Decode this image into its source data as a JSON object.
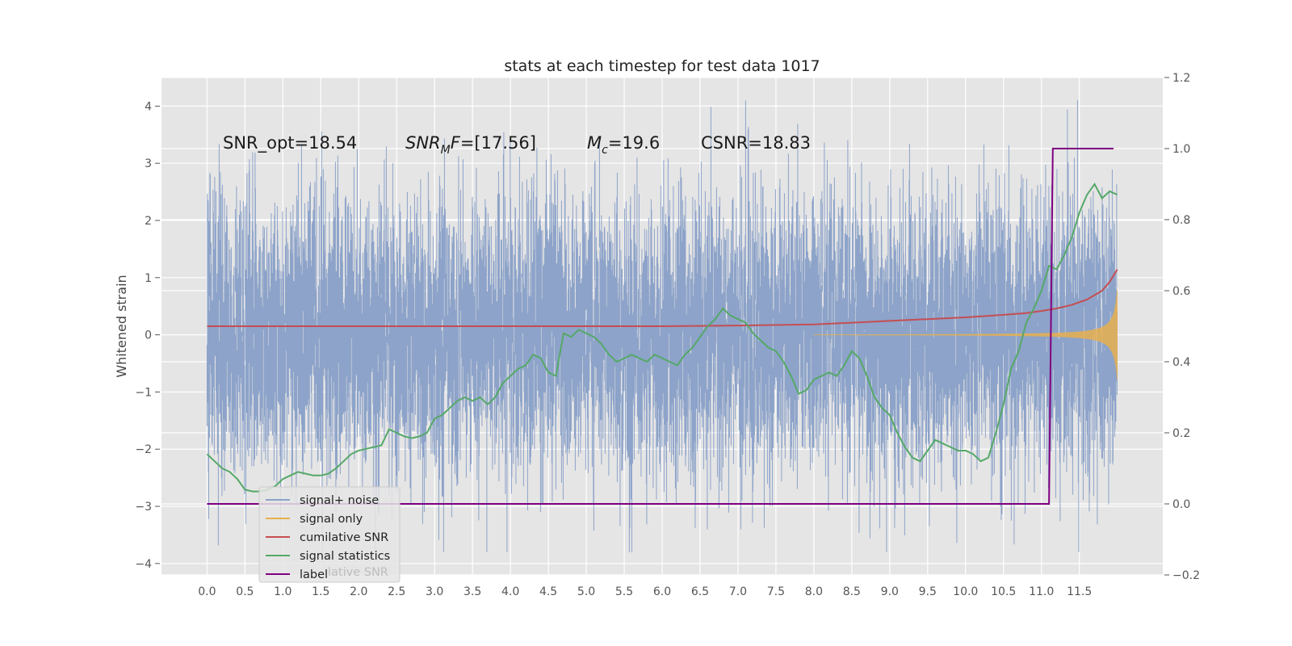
{
  "chart_data": {
    "type": "line",
    "title": "stats at each timestep for test data 1017",
    "ylabel": "Whitened strain",
    "xlabel": "",
    "xlim": [
      -0.6,
      12.6
    ],
    "ylim": [
      -4.2,
      4.5
    ],
    "y2lim": [
      -0.2,
      1.2
    ],
    "x_ticks": [
      "0.0",
      "0.5",
      "1.0",
      "1.5",
      "2.0",
      "2.5",
      "3.0",
      "3.5",
      "4.0",
      "4.5",
      "5.0",
      "5.5",
      "6.0",
      "6.5",
      "7.0",
      "7.5",
      "8.0",
      "8.5",
      "9.0",
      "9.5",
      "10.0",
      "10.5",
      "11.0",
      "11.5"
    ],
    "y_ticks": [
      "−4",
      "−3",
      "−2",
      "−1",
      "0",
      "1",
      "2",
      "3",
      "4"
    ],
    "y2_ticks": [
      "−0.2",
      "0.0",
      "0.2",
      "0.4",
      "0.6",
      "0.8",
      "1.0",
      "1.2"
    ],
    "grid": true,
    "legend_position": "lower-left",
    "annotations": {
      "snr_opt": "SNR_opt=18.54",
      "snr_mf_main": "SNR",
      "snr_mf_sub": "M",
      "snr_mf_rest": "F=[17.56]",
      "mc_main": "M",
      "mc_sub": "c",
      "mc_rest": "=19.6",
      "csnr": "CSNR=18.83"
    },
    "series": [
      {
        "name": "signal+ noise",
        "color": "#8da3c9",
        "axis": "left",
        "x_range": [
          0,
          12.0
        ],
        "amplitude_sigma": 1.0,
        "note_values": "white noise around 0, range about -3.8 to 4.1"
      },
      {
        "name": "signal only",
        "color": "#e8b04f",
        "axis": "left",
        "x_range": [
          0,
          12.0
        ]
      },
      {
        "name": "cumilative SNR",
        "color": "#c44e52",
        "axis": "right",
        "x": [
          0,
          1,
          2,
          3,
          4,
          5,
          6,
          7,
          8,
          8.5,
          9,
          9.5,
          10,
          10.5,
          10.8,
          11.0,
          11.2,
          11.4,
          11.6,
          11.8,
          11.9,
          12.0
        ],
        "values": [
          0.5,
          0.5,
          0.5,
          0.5,
          0.5,
          0.5,
          0.5,
          0.502,
          0.505,
          0.51,
          0.515,
          0.52,
          0.525,
          0.532,
          0.537,
          0.543,
          0.55,
          0.56,
          0.575,
          0.6,
          0.625,
          0.66
        ]
      },
      {
        "name": "signal statistics",
        "color": "#55a868",
        "axis": "right",
        "x": [
          0.0,
          0.1,
          0.2,
          0.3,
          0.4,
          0.5,
          0.6,
          0.7,
          0.8,
          0.9,
          1.0,
          1.1,
          1.2,
          1.3,
          1.4,
          1.5,
          1.6,
          1.7,
          1.8,
          1.9,
          2.0,
          2.1,
          2.2,
          2.3,
          2.4,
          2.5,
          2.6,
          2.7,
          2.8,
          2.9,
          3.0,
          3.1,
          3.2,
          3.3,
          3.4,
          3.5,
          3.6,
          3.7,
          3.8,
          3.9,
          4.0,
          4.1,
          4.2,
          4.3,
          4.4,
          4.5,
          4.6,
          4.7,
          4.8,
          4.9,
          5.0,
          5.1,
          5.2,
          5.3,
          5.4,
          5.5,
          5.6,
          5.7,
          5.8,
          5.9,
          6.0,
          6.1,
          6.2,
          6.3,
          6.4,
          6.5,
          6.6,
          6.7,
          6.8,
          6.9,
          7.0,
          7.1,
          7.2,
          7.3,
          7.4,
          7.5,
          7.6,
          7.7,
          7.8,
          7.9,
          8.0,
          8.1,
          8.2,
          8.3,
          8.4,
          8.5,
          8.6,
          8.7,
          8.8,
          8.9,
          9.0,
          9.1,
          9.2,
          9.3,
          9.4,
          9.5,
          9.6,
          9.7,
          9.8,
          9.9,
          10.0,
          10.1,
          10.2,
          10.3,
          10.4,
          10.5,
          10.6,
          10.7,
          10.8,
          10.9,
          11.0,
          11.1,
          11.2,
          11.3,
          11.4,
          11.5,
          11.6,
          11.7,
          11.8,
          11.9,
          12.0
        ],
        "values": [
          0.14,
          0.12,
          0.1,
          0.09,
          0.07,
          0.04,
          0.035,
          0.035,
          0.04,
          0.05,
          0.07,
          0.08,
          0.09,
          0.085,
          0.08,
          0.08,
          0.085,
          0.1,
          0.12,
          0.14,
          0.15,
          0.155,
          0.16,
          0.165,
          0.21,
          0.2,
          0.19,
          0.185,
          0.19,
          0.2,
          0.24,
          0.25,
          0.27,
          0.29,
          0.3,
          0.29,
          0.3,
          0.28,
          0.3,
          0.34,
          0.36,
          0.38,
          0.39,
          0.42,
          0.41,
          0.37,
          0.36,
          0.48,
          0.47,
          0.49,
          0.48,
          0.47,
          0.45,
          0.42,
          0.4,
          0.41,
          0.42,
          0.41,
          0.4,
          0.42,
          0.41,
          0.4,
          0.39,
          0.42,
          0.44,
          0.47,
          0.5,
          0.52,
          0.55,
          0.53,
          0.52,
          0.51,
          0.48,
          0.46,
          0.44,
          0.43,
          0.4,
          0.36,
          0.31,
          0.32,
          0.35,
          0.36,
          0.37,
          0.36,
          0.39,
          0.43,
          0.41,
          0.36,
          0.3,
          0.27,
          0.25,
          0.2,
          0.16,
          0.13,
          0.12,
          0.15,
          0.18,
          0.17,
          0.16,
          0.15,
          0.15,
          0.14,
          0.12,
          0.13,
          0.2,
          0.28,
          0.38,
          0.43,
          0.51,
          0.55,
          0.6,
          0.67,
          0.66,
          0.7,
          0.75,
          0.82,
          0.87,
          0.9,
          0.86,
          0.88,
          0.87
        ]
      },
      {
        "name": "label",
        "color": "#800080",
        "axis": "right",
        "x": [
          0,
          11.1,
          11.15,
          11.95
        ],
        "values": [
          0.0,
          0.0,
          1.0,
          1.0
        ]
      }
    ],
    "legend_occluded_text": "lative SNR"
  }
}
